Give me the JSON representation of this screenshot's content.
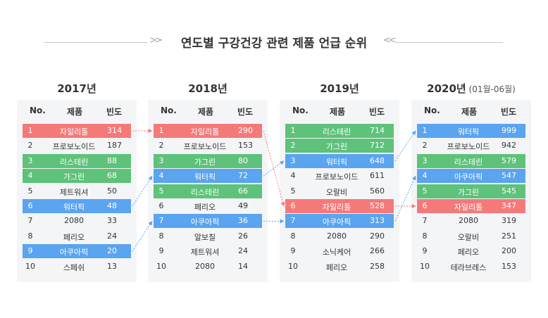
{
  "title": "연도별 구강건강 관련 제품 언급 순위",
  "headers": {
    "rank": "No.",
    "product": "제품",
    "freq": "빈도"
  },
  "colors": {
    "red": "#f47a7a",
    "green": "#5ec27a",
    "blue": "#5aa4f0"
  },
  "tables": [
    {
      "year": "2017년",
      "note": "",
      "rows": [
        {
          "rank": "1",
          "product": "자일리톨",
          "freq": "314",
          "color": "red"
        },
        {
          "rank": "2",
          "product": "프로보노이드",
          "freq": "187",
          "color": ""
        },
        {
          "rank": "3",
          "product": "리스테린",
          "freq": "88",
          "color": "green"
        },
        {
          "rank": "4",
          "product": "가그린",
          "freq": "68",
          "color": "green"
        },
        {
          "rank": "5",
          "product": "제트워셔",
          "freq": "50",
          "color": ""
        },
        {
          "rank": "6",
          "product": "워터픽",
          "freq": "48",
          "color": "blue"
        },
        {
          "rank": "7",
          "product": "2080",
          "freq": "33",
          "color": ""
        },
        {
          "rank": "8",
          "product": "페리오",
          "freq": "24",
          "color": ""
        },
        {
          "rank": "9",
          "product": "아쿠아픽",
          "freq": "20",
          "color": "blue"
        },
        {
          "rank": "10",
          "product": "스페쉬",
          "freq": "13",
          "color": ""
        }
      ]
    },
    {
      "year": "2018년",
      "note": "",
      "rows": [
        {
          "rank": "1",
          "product": "자일리톨",
          "freq": "290",
          "color": "red"
        },
        {
          "rank": "2",
          "product": "프로보노이드",
          "freq": "153",
          "color": ""
        },
        {
          "rank": "3",
          "product": "가그린",
          "freq": "80",
          "color": "green"
        },
        {
          "rank": "4",
          "product": "워터픽",
          "freq": "72",
          "color": "blue"
        },
        {
          "rank": "5",
          "product": "리스테린",
          "freq": "66",
          "color": "green"
        },
        {
          "rank": "6",
          "product": "페리오",
          "freq": "49",
          "color": ""
        },
        {
          "rank": "7",
          "product": "아쿠아픽",
          "freq": "36",
          "color": "blue"
        },
        {
          "rank": "8",
          "product": "알보칠",
          "freq": "26",
          "color": ""
        },
        {
          "rank": "9",
          "product": "제트워셔",
          "freq": "24",
          "color": ""
        },
        {
          "rank": "10",
          "product": "2080",
          "freq": "14",
          "color": ""
        }
      ]
    },
    {
      "year": "2019년",
      "note": "",
      "rows": [
        {
          "rank": "1",
          "product": "리스테린",
          "freq": "714",
          "color": "green"
        },
        {
          "rank": "2",
          "product": "가그린",
          "freq": "712",
          "color": "green"
        },
        {
          "rank": "3",
          "product": "워터픽",
          "freq": "648",
          "color": "blue"
        },
        {
          "rank": "4",
          "product": "프로보노이드",
          "freq": "611",
          "color": ""
        },
        {
          "rank": "5",
          "product": "오랄비",
          "freq": "560",
          "color": ""
        },
        {
          "rank": "6",
          "product": "자일리톨",
          "freq": "528",
          "color": "red"
        },
        {
          "rank": "7",
          "product": "아쿠아픽",
          "freq": "313",
          "color": "blue"
        },
        {
          "rank": "8",
          "product": "2080",
          "freq": "290",
          "color": ""
        },
        {
          "rank": "9",
          "product": "소닉케어",
          "freq": "266",
          "color": ""
        },
        {
          "rank": "10",
          "product": "페리오",
          "freq": "258",
          "color": ""
        }
      ]
    },
    {
      "year": "2020년",
      "note": "(01월-06월)",
      "rows": [
        {
          "rank": "1",
          "product": "워터픽",
          "freq": "999",
          "color": "blue"
        },
        {
          "rank": "2",
          "product": "프로보노이드",
          "freq": "942",
          "color": ""
        },
        {
          "rank": "3",
          "product": "리스테린",
          "freq": "579",
          "color": "green"
        },
        {
          "rank": "4",
          "product": "아쿠아픽",
          "freq": "547",
          "color": "blue"
        },
        {
          "rank": "5",
          "product": "가그린",
          "freq": "545",
          "color": "green"
        },
        {
          "rank": "6",
          "product": "자일리톨",
          "freq": "347",
          "color": "red"
        },
        {
          "rank": "7",
          "product": "2080",
          "freq": "319",
          "color": ""
        },
        {
          "rank": "8",
          "product": "오랄비",
          "freq": "251",
          "color": ""
        },
        {
          "rank": "9",
          "product": "페리오",
          "freq": "200",
          "color": ""
        },
        {
          "rank": "10",
          "product": "테라브레스",
          "freq": "153",
          "color": ""
        }
      ]
    }
  ],
  "arrows": [
    {
      "from_table": 0,
      "from_rank": 1,
      "to_table": 1,
      "to_rank": 1,
      "color": "red"
    },
    {
      "from_table": 0,
      "from_rank": 6,
      "to_table": 1,
      "to_rank": 4,
      "color": "blue"
    },
    {
      "from_table": 0,
      "from_rank": 9,
      "to_table": 1,
      "to_rank": 7,
      "color": "blue"
    },
    {
      "from_table": 1,
      "from_rank": 1,
      "to_table": 2,
      "to_rank": 6,
      "color": "red"
    },
    {
      "from_table": 1,
      "from_rank": 4,
      "to_table": 2,
      "to_rank": 3,
      "color": "blue"
    },
    {
      "from_table": 1,
      "from_rank": 7,
      "to_table": 2,
      "to_rank": 7,
      "color": "blue"
    },
    {
      "from_table": 2,
      "from_rank": 3,
      "to_table": 3,
      "to_rank": 1,
      "color": "blue"
    },
    {
      "from_table": 2,
      "from_rank": 6,
      "to_table": 3,
      "to_rank": 6,
      "color": "red"
    },
    {
      "from_table": 2,
      "from_rank": 7,
      "to_table": 3,
      "to_rank": 4,
      "color": "blue"
    }
  ]
}
